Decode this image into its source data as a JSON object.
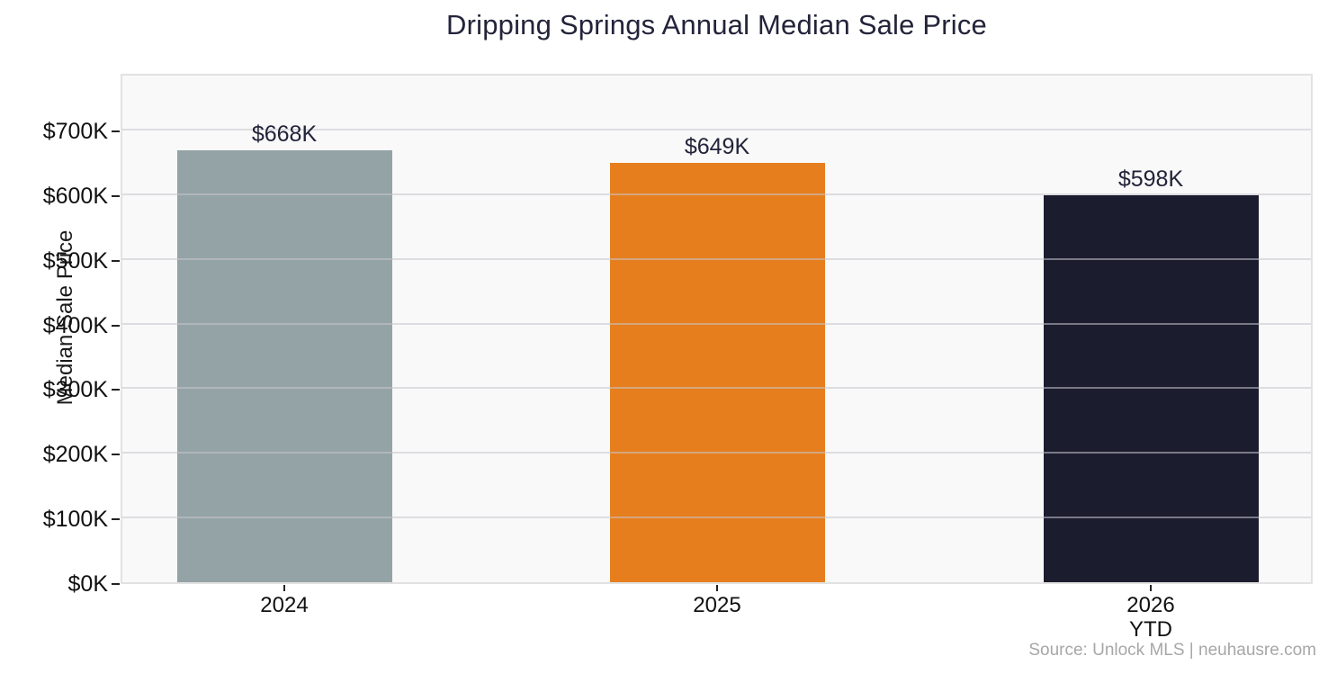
{
  "chart_data": {
    "type": "bar",
    "title": "Dripping Springs Annual Median Sale Price",
    "ylabel": "Median Sale Price",
    "xlabel": "",
    "categories": [
      "2024",
      "2025",
      "2026\nYTD"
    ],
    "values": [
      668,
      649,
      598
    ],
    "value_labels": [
      "$668K",
      "$649K",
      "$598K"
    ],
    "bar_colors": [
      "#94A3A6",
      "#E67E1E",
      "#1C1C2F"
    ],
    "ytick_values": [
      0,
      100,
      200,
      300,
      400,
      500,
      600,
      700
    ],
    "ytick_labels": [
      "$0K",
      "$100K",
      "$200K",
      "$300K",
      "$400K",
      "$500K",
      "$600K",
      "$700K"
    ],
    "ylim": [
      0,
      789
    ],
    "grid": "horizontal, drawn over bars",
    "legend": "none",
    "source": "Source: Unlock MLS | neuhausre.com"
  },
  "colors": {
    "title_text": "#23233A",
    "tick_text": "#111111",
    "value_label_text": "#23233A",
    "source_text": "#A7A7A7",
    "plot_background": "#F9F9F9",
    "plot_border": "#E2E2E2",
    "gridline": "rgba(198,198,206,0.55)",
    "page_background": "#FFFFFF"
  }
}
